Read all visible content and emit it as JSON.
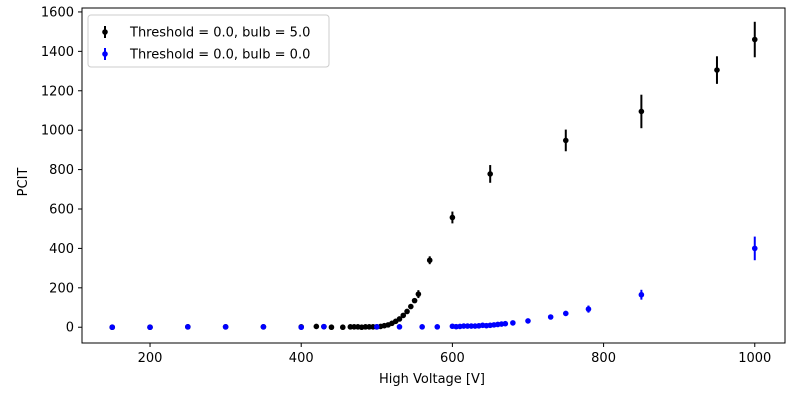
{
  "chart_data": {
    "type": "scatter",
    "xlabel": "High Voltage [V]",
    "ylabel": "PCIT",
    "xlim": [
      110,
      1040
    ],
    "ylim": [
      -80,
      1620
    ],
    "xticks": [
      200,
      400,
      600,
      800,
      1000
    ],
    "yticks": [
      0,
      200,
      400,
      600,
      800,
      1000,
      1200,
      1400,
      1600
    ],
    "grid": false,
    "legend_position": "top-left",
    "series": [
      {
        "name": "Threshold = 0.0, bulb = 5.0",
        "color": "#000000",
        "points": [
          {
            "x": 150,
            "y": 0,
            "err": 0
          },
          {
            "x": 200,
            "y": 0,
            "err": 0
          },
          {
            "x": 250,
            "y": 2,
            "err": 0
          },
          {
            "x": 300,
            "y": 2,
            "err": 0
          },
          {
            "x": 350,
            "y": 2,
            "err": 0
          },
          {
            "x": 400,
            "y": 2,
            "err": 0
          },
          {
            "x": 420,
            "y": 4,
            "err": 0
          },
          {
            "x": 430,
            "y": 3,
            "err": 0
          },
          {
            "x": 440,
            "y": 0,
            "err": 0
          },
          {
            "x": 455,
            "y": 0,
            "err": 0
          },
          {
            "x": 465,
            "y": 2,
            "err": 0
          },
          {
            "x": 470,
            "y": 2,
            "err": 0
          },
          {
            "x": 475,
            "y": 2,
            "err": 0
          },
          {
            "x": 480,
            "y": 0,
            "err": 0
          },
          {
            "x": 485,
            "y": 2,
            "err": 0
          },
          {
            "x": 490,
            "y": 2,
            "err": 0
          },
          {
            "x": 495,
            "y": 2,
            "err": 0
          },
          {
            "x": 500,
            "y": 2,
            "err": 0
          },
          {
            "x": 505,
            "y": 4,
            "err": 0
          },
          {
            "x": 510,
            "y": 8,
            "err": 0
          },
          {
            "x": 515,
            "y": 12,
            "err": 0
          },
          {
            "x": 520,
            "y": 20,
            "err": 0
          },
          {
            "x": 525,
            "y": 30,
            "err": 0
          },
          {
            "x": 530,
            "y": 42,
            "err": 4
          },
          {
            "x": 535,
            "y": 60,
            "err": 6
          },
          {
            "x": 540,
            "y": 80,
            "err": 8
          },
          {
            "x": 545,
            "y": 105,
            "err": 10
          },
          {
            "x": 550,
            "y": 135,
            "err": 12
          },
          {
            "x": 555,
            "y": 168,
            "err": 20
          },
          {
            "x": 570,
            "y": 340,
            "err": 20
          },
          {
            "x": 600,
            "y": 557,
            "err": 30
          },
          {
            "x": 650,
            "y": 778,
            "err": 45
          },
          {
            "x": 750,
            "y": 948,
            "err": 55
          },
          {
            "x": 850,
            "y": 1095,
            "err": 85
          },
          {
            "x": 950,
            "y": 1305,
            "err": 70
          },
          {
            "x": 1000,
            "y": 1460,
            "err": 90
          }
        ]
      },
      {
        "name": "Threshold = 0.0, bulb = 0.0",
        "color": "#0000ff",
        "points": [
          {
            "x": 150,
            "y": 0,
            "err": 0
          },
          {
            "x": 200,
            "y": 0,
            "err": 0
          },
          {
            "x": 250,
            "y": 2,
            "err": 0
          },
          {
            "x": 300,
            "y": 2,
            "err": 0
          },
          {
            "x": 350,
            "y": 2,
            "err": 0
          },
          {
            "x": 400,
            "y": 0,
            "err": 0
          },
          {
            "x": 430,
            "y": 3,
            "err": 0
          },
          {
            "x": 500,
            "y": 2,
            "err": 0
          },
          {
            "x": 530,
            "y": 2,
            "err": 0
          },
          {
            "x": 560,
            "y": 2,
            "err": 0
          },
          {
            "x": 580,
            "y": 2,
            "err": 0
          },
          {
            "x": 600,
            "y": 5,
            "err": 0
          },
          {
            "x": 605,
            "y": 3,
            "err": 0
          },
          {
            "x": 610,
            "y": 4,
            "err": 0
          },
          {
            "x": 615,
            "y": 6,
            "err": 0
          },
          {
            "x": 620,
            "y": 6,
            "err": 0
          },
          {
            "x": 625,
            "y": 6,
            "err": 0
          },
          {
            "x": 630,
            "y": 6,
            "err": 0
          },
          {
            "x": 635,
            "y": 7,
            "err": 0
          },
          {
            "x": 640,
            "y": 10,
            "err": 0
          },
          {
            "x": 645,
            "y": 8,
            "err": 0
          },
          {
            "x": 650,
            "y": 10,
            "err": 0
          },
          {
            "x": 655,
            "y": 12,
            "err": 0
          },
          {
            "x": 660,
            "y": 14,
            "err": 0
          },
          {
            "x": 665,
            "y": 16,
            "err": 0
          },
          {
            "x": 670,
            "y": 18,
            "err": 0
          },
          {
            "x": 680,
            "y": 22,
            "err": 0
          },
          {
            "x": 700,
            "y": 32,
            "err": 0
          },
          {
            "x": 730,
            "y": 52,
            "err": 10
          },
          {
            "x": 750,
            "y": 70,
            "err": 12
          },
          {
            "x": 780,
            "y": 92,
            "err": 18
          },
          {
            "x": 850,
            "y": 165,
            "err": 25
          },
          {
            "x": 1000,
            "y": 400,
            "err": 60
          }
        ]
      }
    ]
  }
}
